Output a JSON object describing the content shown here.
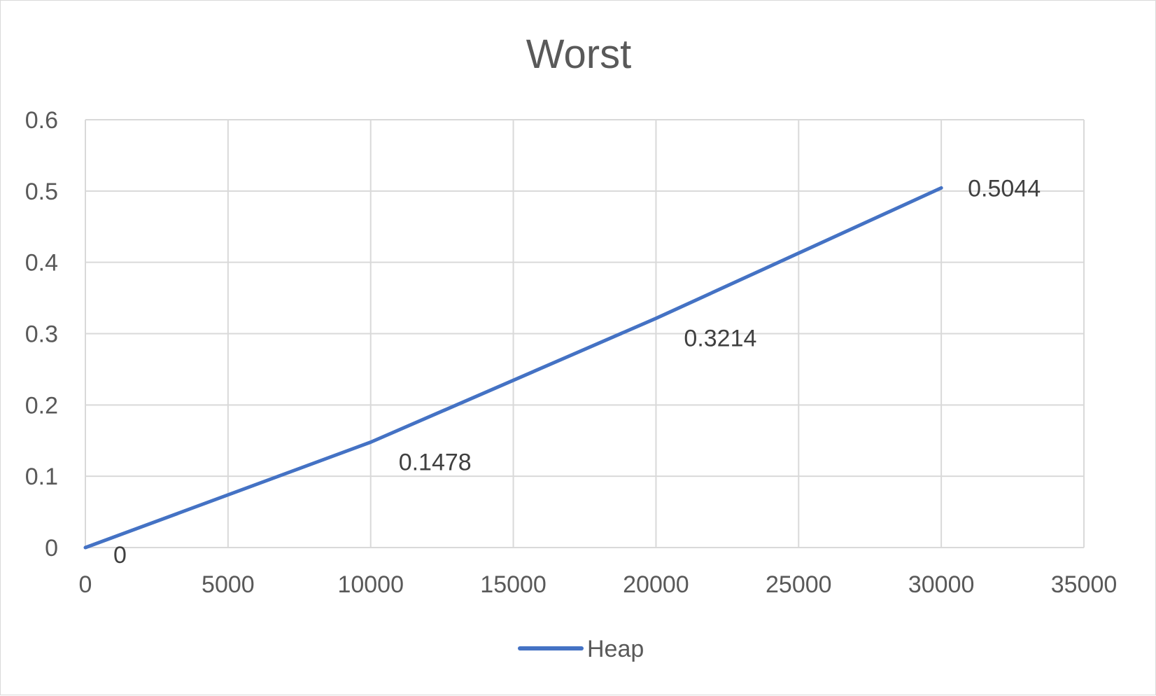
{
  "chart_data": {
    "type": "line",
    "title": "Worst",
    "xlabel": "",
    "ylabel": "",
    "xlim": [
      0,
      35000
    ],
    "ylim": [
      0,
      0.6
    ],
    "x_ticks": [
      0,
      5000,
      10000,
      15000,
      20000,
      25000,
      30000,
      35000
    ],
    "y_ticks": [
      0,
      0.1,
      0.2,
      0.3,
      0.4,
      0.5,
      0.6
    ],
    "grid": true,
    "legend_position": "bottom",
    "series": [
      {
        "name": "Heap",
        "color": "#4472c4",
        "x": [
          0,
          10000,
          20000,
          30000
        ],
        "y": [
          0,
          0.1478,
          0.3214,
          0.5044
        ],
        "labels": [
          "0",
          "0.1478",
          "0.3214",
          "0.5044"
        ]
      }
    ]
  }
}
